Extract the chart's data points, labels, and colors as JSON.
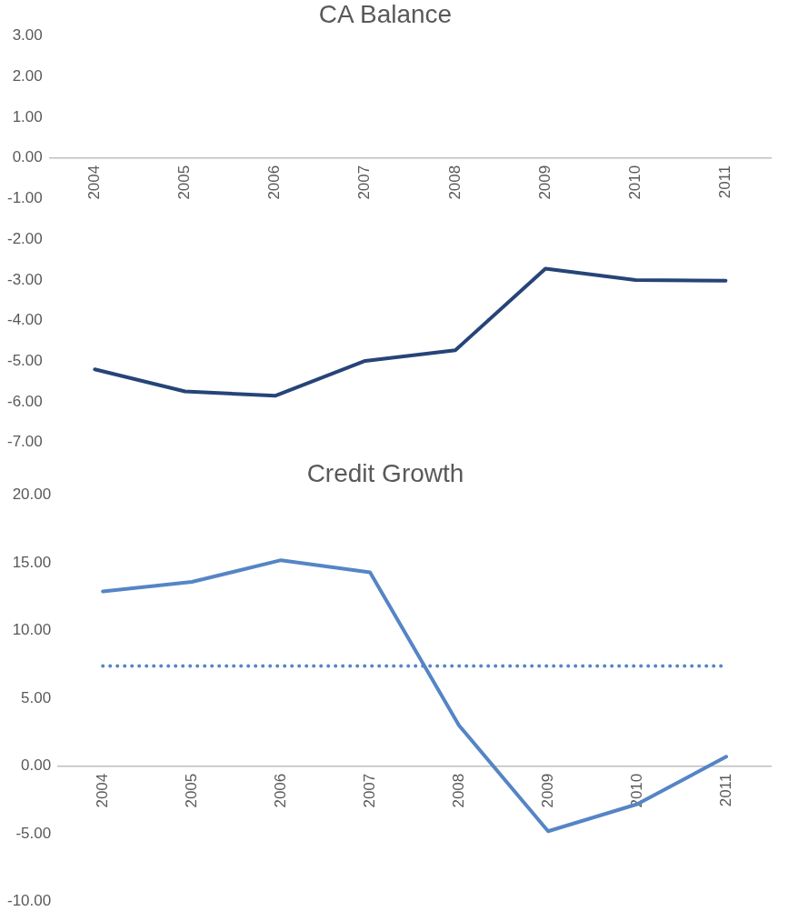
{
  "chart_data": [
    {
      "type": "line",
      "title": "CA Balance",
      "categories": [
        "2004",
        "2005",
        "2006",
        "2007",
        "2008",
        "2009",
        "2010",
        "2011"
      ],
      "series": [
        {
          "color": "#264478",
          "values": [
            -5.2,
            -5.74,
            -5.85,
            -4.99,
            -4.73,
            -2.72,
            -3.0,
            -3.02
          ]
        }
      ],
      "ylim": [
        -7,
        3
      ],
      "yticks": [
        {
          "value": -7,
          "label": "-7.00"
        },
        {
          "value": -6,
          "label": "-6.00"
        },
        {
          "value": -5,
          "label": "-5.00"
        },
        {
          "value": -4,
          "label": "-4.00"
        },
        {
          "value": -3,
          "label": "-3.00"
        },
        {
          "value": -2,
          "label": "-2.00"
        },
        {
          "value": -1,
          "label": "-1.00"
        },
        {
          "value": 0,
          "label": "0.00"
        },
        {
          "value": 1,
          "label": "1.00"
        },
        {
          "value": 2,
          "label": "2.00"
        },
        {
          "value": 3,
          "label": "3.00"
        }
      ],
      "grid": false,
      "legend": false,
      "marker": "none",
      "line_style": "solid"
    },
    {
      "type": "line",
      "title": "Credit Growth",
      "categories": [
        "2004",
        "2005",
        "2006",
        "2007",
        "2008",
        "2009",
        "2010",
        "2011"
      ],
      "series": [
        {
          "color": "#5585c5",
          "values": [
            12.9,
            13.6,
            15.2,
            14.3,
            3.0,
            -4.8,
            -2.8,
            0.7
          ]
        }
      ],
      "ylim": [
        -10,
        20
      ],
      "yticks": [
        {
          "value": -10,
          "label": "-10.00"
        },
        {
          "value": -5,
          "label": "-5.00"
        },
        {
          "value": 0,
          "label": "0.00"
        },
        {
          "value": 5,
          "label": "5.00"
        },
        {
          "value": 10,
          "label": "10.00"
        },
        {
          "value": 15,
          "label": "15.00"
        },
        {
          "value": 20,
          "label": "20.00"
        }
      ],
      "ref_lines": [
        {
          "axis": "y",
          "value": 7.4,
          "color": "#5585c5",
          "line_style": "dotted"
        }
      ],
      "grid": false,
      "legend": false,
      "marker": "none",
      "line_style": "solid"
    }
  ]
}
